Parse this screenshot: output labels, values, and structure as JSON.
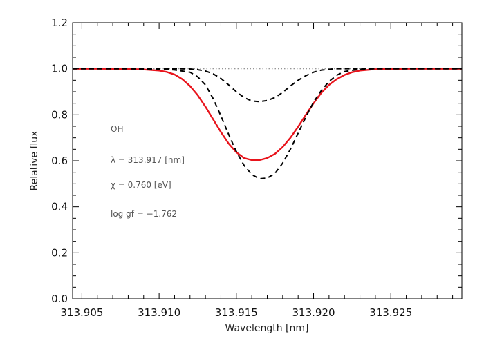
{
  "chart_data": {
    "type": "line",
    "xlabel": "Wavelength [nm]",
    "ylabel": "Relative flux",
    "xlim": [
      313.9044,
      313.9296
    ],
    "ylim": [
      0.0,
      1.2
    ],
    "x_ticks": [
      "313.905",
      "313.910",
      "313.915",
      "313.920",
      "313.925"
    ],
    "x_tick_values": [
      313.905,
      313.91,
      313.915,
      313.92,
      313.925
    ],
    "y_ticks": [
      "0.0",
      "0.2",
      "0.4",
      "0.6",
      "0.8",
      "1.0",
      "1.2"
    ],
    "y_tick_values": [
      0.0,
      0.2,
      0.4,
      0.6,
      0.8,
      1.0,
      1.2
    ],
    "grid": false,
    "annotations": [
      "OH",
      "λ = 313.917 [nm]",
      "χ =  0.760 [eV]",
      "log gf = −1.762"
    ],
    "reference_line": {
      "y": 1.0,
      "style": "dotted",
      "color": "#888888"
    },
    "series": [
      {
        "style": "solid",
        "color": "#e8141c",
        "x": [
          313.9044,
          313.906,
          313.908,
          313.909,
          313.91,
          313.9105,
          313.911,
          313.9115,
          313.912,
          313.9125,
          313.913,
          313.9135,
          313.914,
          313.9145,
          313.915,
          313.9155,
          313.916,
          313.9165,
          313.917,
          313.9175,
          313.918,
          313.9185,
          313.919,
          313.9195,
          313.92,
          313.9205,
          313.921,
          313.9215,
          313.922,
          313.9225,
          313.923,
          313.924,
          313.926,
          313.928,
          313.9296
        ],
        "y": [
          1.0,
          1.0,
          0.999,
          0.997,
          0.992,
          0.986,
          0.975,
          0.955,
          0.925,
          0.885,
          0.835,
          0.78,
          0.725,
          0.675,
          0.637,
          0.612,
          0.603,
          0.603,
          0.612,
          0.63,
          0.66,
          0.7,
          0.748,
          0.8,
          0.85,
          0.895,
          0.93,
          0.955,
          0.973,
          0.985,
          0.992,
          0.998,
          1.0,
          1.0,
          1.0
        ]
      },
      {
        "style": "dashed",
        "color": "#000000",
        "x": [
          313.9044,
          313.908,
          313.91,
          313.911,
          313.912,
          313.9125,
          313.913,
          313.9135,
          313.914,
          313.9145,
          313.915,
          313.9155,
          313.916,
          313.9165,
          313.917,
          313.9175,
          313.918,
          313.9185,
          313.919,
          313.9195,
          313.92,
          313.9205,
          313.921,
          313.9215,
          313.922,
          313.923,
          313.924,
          313.926,
          313.9296
        ],
        "y": [
          1.0,
          1.0,
          0.998,
          0.995,
          0.985,
          0.965,
          0.93,
          0.87,
          0.795,
          0.715,
          0.64,
          0.58,
          0.54,
          0.522,
          0.525,
          0.545,
          0.59,
          0.65,
          0.72,
          0.79,
          0.855,
          0.905,
          0.945,
          0.972,
          0.988,
          0.998,
          1.0,
          1.0,
          1.0
        ]
      },
      {
        "style": "dashed",
        "color": "#000000",
        "x": [
          313.9044,
          313.908,
          313.91,
          313.911,
          313.912,
          313.9125,
          313.913,
          313.9135,
          313.914,
          313.9145,
          313.915,
          313.9155,
          313.916,
          313.9165,
          313.917,
          313.9175,
          313.918,
          313.9185,
          313.919,
          313.9195,
          313.92,
          313.9205,
          313.921,
          313.9215,
          313.922,
          313.923,
          313.924,
          313.926,
          313.9296
        ],
        "y": [
          1.0,
          1.0,
          1.0,
          1.0,
          0.999,
          0.996,
          0.99,
          0.978,
          0.958,
          0.93,
          0.9,
          0.875,
          0.86,
          0.857,
          0.862,
          0.875,
          0.897,
          0.925,
          0.95,
          0.97,
          0.985,
          0.994,
          0.998,
          1.0,
          1.0,
          1.0,
          1.0,
          1.0,
          1.0
        ]
      }
    ]
  }
}
